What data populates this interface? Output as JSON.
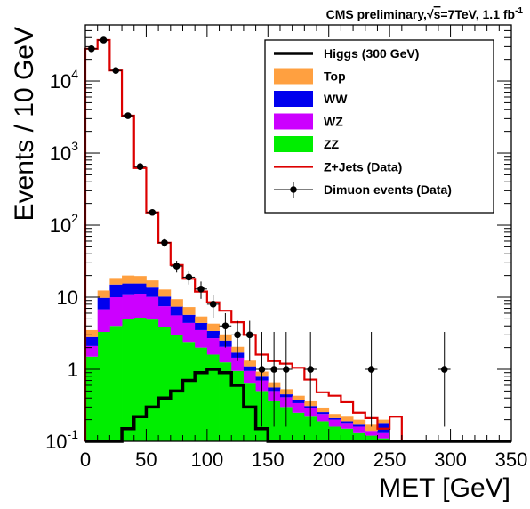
{
  "header": {
    "title_prefix": "CMS preliminary,",
    "title_sqrt": "√",
    "title_s": "s",
    "title_suffix": "=7TeV, 1.1 fb",
    "title_sup": "-1"
  },
  "chart_data": {
    "type": "histogram",
    "xlabel": "MET [GeV]",
    "ylabel": "Events / 10 GeV",
    "xlim": [
      0,
      350
    ],
    "ylim": [
      0.1,
      60000
    ],
    "yscale": "log",
    "bin_width": 10,
    "x_ticks": [
      0,
      50,
      100,
      150,
      200,
      250,
      300,
      350
    ],
    "y_ticks": [
      {
        "value": 0.1,
        "base": "10",
        "exp": "-1"
      },
      {
        "value": 1,
        "base": "1",
        "exp": ""
      },
      {
        "value": 10,
        "base": "10",
        "exp": ""
      },
      {
        "value": 100,
        "base": "10",
        "exp": "2"
      },
      {
        "value": 1000,
        "base": "10",
        "exp": "3"
      },
      {
        "value": 10000,
        "base": "10",
        "exp": "4"
      }
    ],
    "bins": [
      0,
      10,
      20,
      30,
      40,
      50,
      60,
      70,
      80,
      90,
      100,
      110,
      120,
      130,
      140,
      150,
      160,
      170,
      180,
      190,
      200,
      210,
      220,
      230,
      240,
      250,
      260,
      270,
      280,
      290,
      300,
      310,
      320,
      330,
      340
    ],
    "stack": [
      {
        "name": "ZZ",
        "color": "#00ee00",
        "values": [
          1.5,
          3.3,
          4.0,
          5.0,
          5.2,
          4.9,
          3.9,
          3.0,
          2.4,
          2.0,
          1.6,
          1.25,
          0.95,
          0.65,
          0.5,
          0.36,
          0.3,
          0.25,
          0.22,
          0.19,
          0.16,
          0.15,
          0.13,
          0.12,
          0.11,
          0.105,
          0,
          0,
          0,
          0,
          0,
          0,
          0,
          0,
          0
        ]
      },
      {
        "name": "WZ",
        "color": "#cc00ff",
        "values": [
          0.6,
          3.5,
          6.0,
          6.0,
          6.0,
          5.2,
          3.6,
          2.6,
          2.0,
          1.5,
          1.1,
          0.8,
          0.5,
          0.3,
          0.2,
          0.14,
          0.11,
          0.09,
          0.07,
          0.05,
          0.04,
          0.03,
          0.03,
          0.02,
          0.02,
          0.0,
          0,
          0,
          0,
          0,
          0,
          0,
          0,
          0,
          0
        ]
      },
      {
        "name": "WW",
        "color": "#0000ee",
        "values": [
          0.7,
          3.0,
          5.0,
          4.5,
          4.3,
          3.5,
          2.7,
          1.8,
          1.3,
          0.9,
          0.7,
          0.45,
          0.25,
          0.15,
          0.09,
          0.06,
          0.04,
          0.03,
          0.02,
          0.015,
          0.01,
          0.01,
          0.01,
          0.0,
          0.05,
          0.0,
          0,
          0,
          0,
          0,
          0,
          0,
          0,
          0,
          0
        ]
      },
      {
        "name": "Top",
        "color": "#ffa040",
        "values": [
          0.7,
          2.6,
          3.5,
          4.5,
          4.2,
          3.5,
          2.6,
          2.0,
          1.6,
          1.0,
          0.9,
          0.55,
          0.35,
          0.22,
          0.14,
          0.1,
          0.08,
          0.06,
          0.05,
          0.04,
          0.03,
          0.03,
          0.03,
          0.03,
          0.02,
          0.0,
          0,
          0,
          0,
          0,
          0,
          0,
          0,
          0,
          0
        ]
      }
    ],
    "series": [
      {
        "name": "Z+Jets (Data)",
        "color": "#dd0000",
        "values": [
          28000,
          37000,
          14000,
          3300,
          620,
          150,
          57,
          28,
          18,
          12,
          8.5,
          6.5,
          4.5,
          3.0,
          1.6,
          1.3,
          1.2,
          1.05,
          0.72,
          0.48,
          0.43,
          0.35,
          0.25,
          0.21,
          0.15,
          0.22,
          0.1,
          0.1,
          0.1,
          0.1,
          0.1,
          0.1,
          0.1,
          0.1,
          0.1
        ]
      },
      {
        "name": "Higgs (300 GeV)",
        "color": "#000000",
        "values": [
          0.1,
          0.1,
          0.1,
          0.15,
          0.22,
          0.3,
          0.4,
          0.5,
          0.7,
          0.9,
          1.0,
          0.9,
          0.6,
          0.3,
          0.15,
          0.1,
          0.1,
          0.1,
          0.1,
          0.1,
          0.1,
          0.1,
          0.1,
          0.1,
          0.1,
          0.1,
          0.1,
          0.1,
          0.1,
          0.1,
          0.1,
          0.1,
          0.1,
          0.1,
          0.1
        ]
      }
    ],
    "points": {
      "name": "Dimuon events (Data)",
      "color": "#000000",
      "x": [
        5,
        15,
        25,
        35,
        45,
        55,
        65,
        75,
        85,
        95,
        105,
        115,
        125,
        135,
        145,
        155,
        165,
        185,
        235,
        295
      ],
      "y": [
        28000,
        37000,
        14000,
        3300,
        650,
        150,
        57,
        27,
        19,
        13,
        8,
        4,
        3,
        3,
        1,
        1,
        1,
        1,
        1,
        1
      ],
      "err_lo": [
        0,
        0,
        0,
        0,
        0,
        12,
        7,
        5,
        4,
        3.5,
        2.8,
        2.0,
        1.7,
        1.7,
        0.84,
        0.84,
        0.84,
        0.84,
        0.84,
        0.84
      ],
      "err_hi": [
        0,
        0,
        0,
        0,
        0,
        12,
        7,
        5,
        4,
        3.5,
        2.8,
        2.0,
        1.7,
        1.7,
        2.3,
        2.3,
        2.3,
        2.3,
        2.3,
        2.3
      ]
    },
    "legend": {
      "placement": "top-right",
      "entries": [
        {
          "label": "Higgs (300 GeV)",
          "style": "line",
          "color": "#000000"
        },
        {
          "label": "Top",
          "style": "fill",
          "color": "#ffa040"
        },
        {
          "label": "WW",
          "style": "fill",
          "color": "#0000ee"
        },
        {
          "label": "WZ",
          "style": "fill",
          "color": "#cc00ff"
        },
        {
          "label": "ZZ",
          "style": "fill",
          "color": "#00ee00"
        },
        {
          "label": "Z+Jets (Data)",
          "style": "line",
          "color": "#dd0000"
        },
        {
          "label": "Dimuon events (Data)",
          "style": "marker",
          "color": "#000000"
        }
      ]
    }
  }
}
